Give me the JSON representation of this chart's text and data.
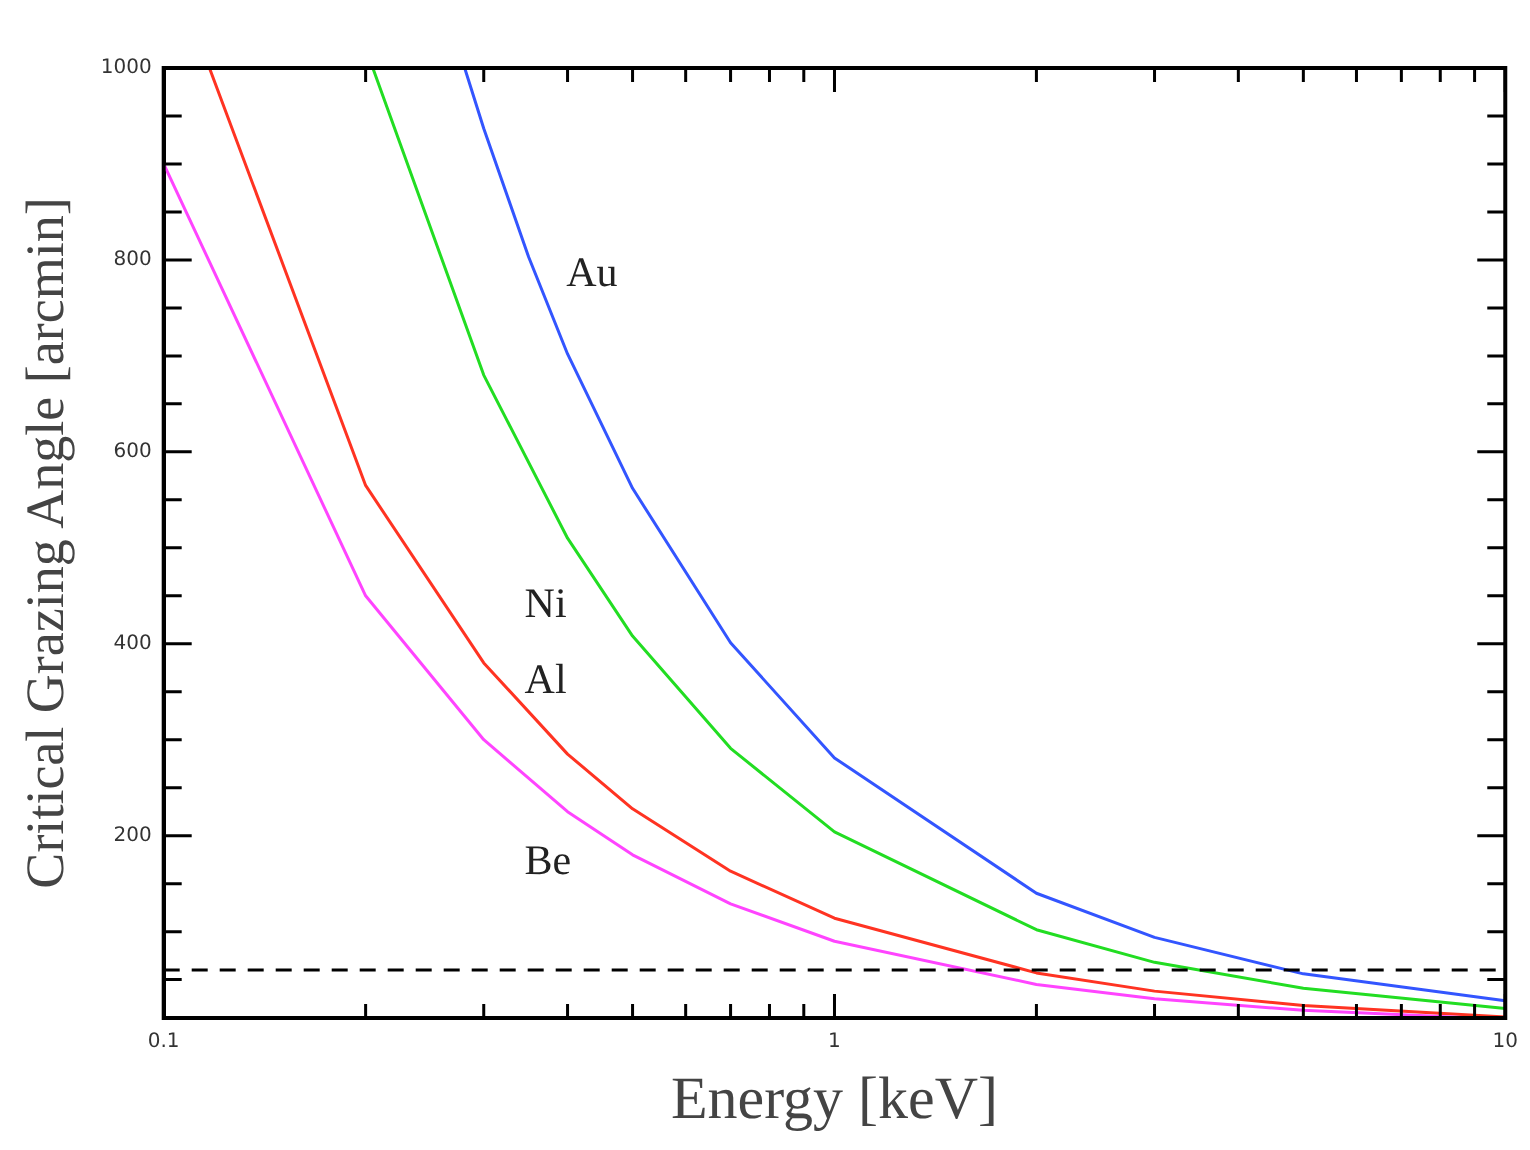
{
  "chart_data": {
    "type": "line",
    "xlabel": "Energy [keV]",
    "ylabel": "Critical Grazing Angle [arcmin]",
    "log": "x",
    "xlim": [
      0.1,
      10
    ],
    "xticks": [
      0.1,
      {
        "value": 0.2,
        "label": null
      },
      {
        "value": 0.3,
        "label": null
      },
      {
        "value": 0.4,
        "label": null
      },
      {
        "value": 0.5,
        "label": null
      },
      {
        "value": 0.6,
        "label": null
      },
      {
        "value": 0.7,
        "label": null
      },
      {
        "value": 0.8,
        "label": null
      },
      {
        "value": 0.9,
        "label": null
      },
      1,
      {
        "value": 2,
        "label": null
      },
      {
        "value": 3,
        "label": null
      },
      {
        "value": 4,
        "label": null
      },
      {
        "value": 5,
        "label": null
      },
      {
        "value": 6,
        "label": null
      },
      {
        "value": 7,
        "label": null
      },
      {
        "value": 8,
        "label": null
      },
      {
        "value": 9,
        "label": null
      },
      10
    ],
    "ylim": [
      10,
      1000
    ],
    "yticks": [
      {
        "value": 50,
        "label": null
      },
      {
        "value": 100,
        "label": null
      },
      {
        "value": 150,
        "label": null
      },
      200,
      {
        "value": 250,
        "label": null
      },
      {
        "value": 300,
        "label": null
      },
      {
        "value": 350,
        "label": null
      },
      400,
      {
        "value": 450,
        "label": null
      },
      {
        "value": 500,
        "label": null
      },
      {
        "value": 550,
        "label": null
      },
      600,
      {
        "value": 650,
        "label": null
      },
      {
        "value": 700,
        "label": null
      },
      {
        "value": 750,
        "label": null
      },
      800,
      {
        "value": 850,
        "label": null
      },
      {
        "value": 900,
        "label": null
      },
      {
        "value": 950,
        "label": null
      },
      1000
    ],
    "marker": "none",
    "line_style": "solid",
    "series": [
      {
        "color": "#ff44ff",
        "x": [
          0.1,
          0.2,
          0.3,
          0.4,
          0.5,
          0.7,
          1,
          2,
          3,
          5,
          9
        ],
        "values": [
          900,
          450,
          300,
          225,
          180,
          129,
          90,
          45,
          30,
          18,
          10
        ]
      },
      {
        "color": "#ff3322",
        "x": [
          0.117,
          0.2,
          0.3,
          0.4,
          0.5,
          0.7,
          1,
          2,
          3,
          5,
          10
        ],
        "values": [
          1000,
          565,
          380,
          285,
          228,
          163,
          114,
          57,
          38,
          23,
          11
        ]
      },
      {
        "color": "#22dd22",
        "x": [
          0.205,
          0.3,
          0.4,
          0.5,
          0.7,
          1,
          2,
          3,
          5,
          10
        ],
        "values": [
          1000,
          680,
          510,
          408,
          291,
          204,
          102,
          68,
          41,
          20
        ]
      },
      {
        "color": "#3355ff",
        "x": [
          0.281,
          0.3,
          0.35,
          0.4,
          0.5,
          0.7,
          1,
          2,
          3,
          5,
          10
        ],
        "values": [
          1000,
          937,
          803,
          702,
          562,
          401,
          281,
          140,
          94,
          56,
          28
        ]
      }
    ],
    "ref_lines": [
      {
        "axis": "y",
        "value": 60,
        "color": "#000000",
        "line_style": "dashed"
      }
    ],
    "annotations": [
      "Au",
      "Ni",
      "Al",
      "Be"
    ]
  }
}
